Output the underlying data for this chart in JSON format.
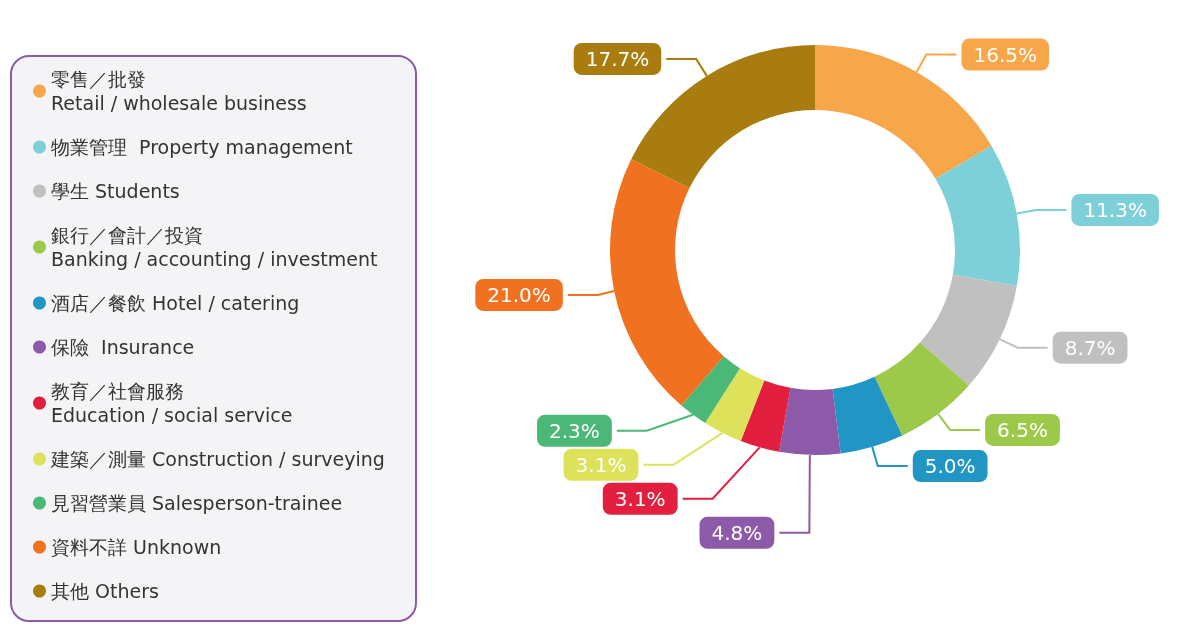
{
  "chart_data": {
    "type": "donut",
    "categories": [
      "零售／批發\nRetail / wholesale business",
      "物業管理  Property management",
      "學生 Students",
      "銀行／會計／投資\nBanking / accounting / investment",
      "酒店／餐飲 Hotel / catering",
      "保險  Insurance",
      "教育／社會服務\nEducation / social service",
      "建築／測量 Construction / surveying",
      "見習營業員 Salesperson-trainee",
      "資料不詳 Unknown",
      "其他 Others"
    ],
    "values": [
      16.5,
      11.3,
      8.7,
      6.5,
      5.0,
      4.8,
      3.1,
      3.1,
      2.3,
      21.0,
      17.7
    ],
    "value_labels": [
      "16.5%",
      "11.3%",
      "8.7%",
      "6.5%",
      "5.0%",
      "4.8%",
      "3.1%",
      "3.1%",
      "2.3%",
      "21.0%",
      "17.7%"
    ],
    "colors": [
      "#f7a64a",
      "#7dd0d8",
      "#c0c0c0",
      "#9dc94a",
      "#2196c4",
      "#8c5aa8",
      "#e21f3f",
      "#dde25a",
      "#4cb878",
      "#f07220",
      "#a87c0e"
    ],
    "legend": "left"
  }
}
